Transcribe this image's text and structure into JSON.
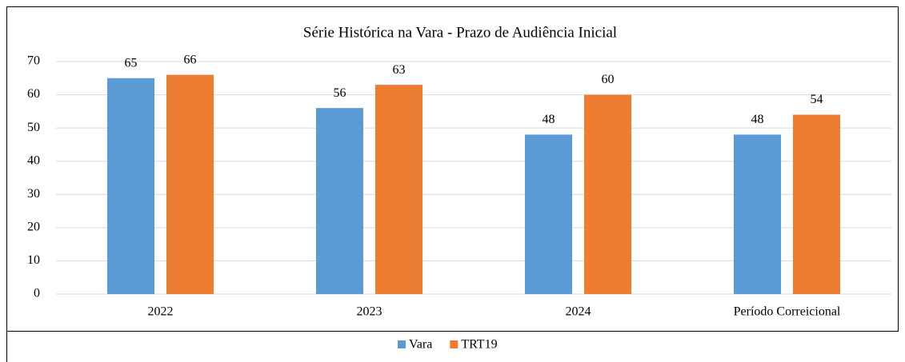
{
  "chart_data": {
    "type": "bar",
    "title": "Série Histórica na Vara - Prazo de Audiência Inicial",
    "categories": [
      "2022",
      "2023",
      "2024",
      "Período Correicional"
    ],
    "series": [
      {
        "name": "Vara",
        "color": "#5b9bd5",
        "values": [
          65,
          56,
          48,
          48
        ]
      },
      {
        "name": "TRT19",
        "color": "#ed7d31",
        "values": [
          66,
          63,
          60,
          54
        ]
      }
    ],
    "ylim": [
      0,
      70
    ],
    "yticks": [
      0,
      10,
      20,
      30,
      40,
      50,
      60,
      70
    ],
    "grid": true,
    "legend": "bottom"
  }
}
